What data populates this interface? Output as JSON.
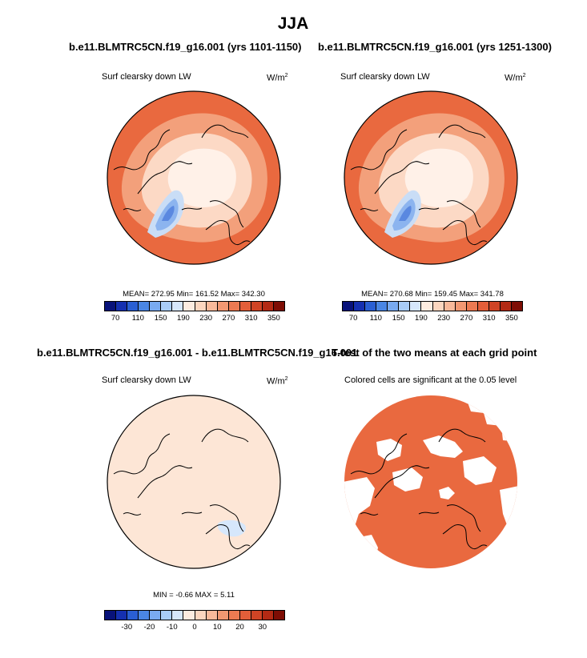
{
  "figure": {
    "title": "JJA"
  },
  "panels": [
    {
      "id": "p1",
      "title": "b.e11.BLMTRC5CN.f19_g16.001 (yrs 1101-1150)",
      "label": "Surf clearsky down LW",
      "units_base": "W/m",
      "units_exp": "2",
      "stats": "MEAN= 272.95  Min= 161.52  Max= 342.30"
    },
    {
      "id": "p2",
      "title": "b.e11.BLMTRC5CN.f19_g16.001 (yrs 1251-1300)",
      "label": "Surf clearsky down LW",
      "units_base": "W/m",
      "units_exp": "2",
      "stats": "MEAN= 270.68  Min= 159.45  Max= 341.78"
    },
    {
      "id": "p3",
      "title": "b.e11.BLMTRC5CN.f19_g16.001 - b.e11.BLMTRC5CN.f19_g16.001",
      "label": "Surf clearsky down LW",
      "units_base": "W/m",
      "units_exp": "2",
      "stats": "MIN =  -0.66 MAX =   5.11"
    },
    {
      "id": "p4",
      "title": "T-test of the two means at each grid point",
      "label": "Colored cells are significant at the 0.05 level"
    }
  ],
  "colorbars": {
    "absolute": {
      "ticks": [
        "70",
        "110",
        "150",
        "190",
        "230",
        "270",
        "310",
        "350"
      ],
      "colors": [
        "#08127a",
        "#1530b0",
        "#2a5fd3",
        "#4a86e4",
        "#79aaf0",
        "#a9ccf7",
        "#d6e7fb",
        "#fdece0",
        "#fbd6bf",
        "#f8b99a",
        "#f29872",
        "#ec7a52",
        "#e35e39",
        "#d04425",
        "#b32a14",
        "#7e0d04"
      ]
    },
    "difference": {
      "ticks": [
        "-30",
        "-20",
        "-10",
        "0",
        "10",
        "20",
        "30"
      ],
      "colors": [
        "#08127a",
        "#1530b0",
        "#2a5fd3",
        "#4a86e4",
        "#79aaf0",
        "#a9ccf7",
        "#d6e7fb",
        "#fdece0",
        "#fbd6bf",
        "#f8b99a",
        "#f29872",
        "#ec7a52",
        "#e35e39",
        "#d04425",
        "#b32a14",
        "#7e0d04"
      ]
    }
  },
  "map_colors": {
    "outer": "#e9693f",
    "mid": "#f3a07b",
    "inner": "#fcd9c5",
    "core": "#fff1e8",
    "ice_light": "#c9ddf6",
    "ice_mid": "#8cb4ef",
    "ice_dark": "#5a88e0",
    "diff_fill": "#fde6d6",
    "diff_blue": "#d6e7fb",
    "ttest": "#e9693f"
  }
}
